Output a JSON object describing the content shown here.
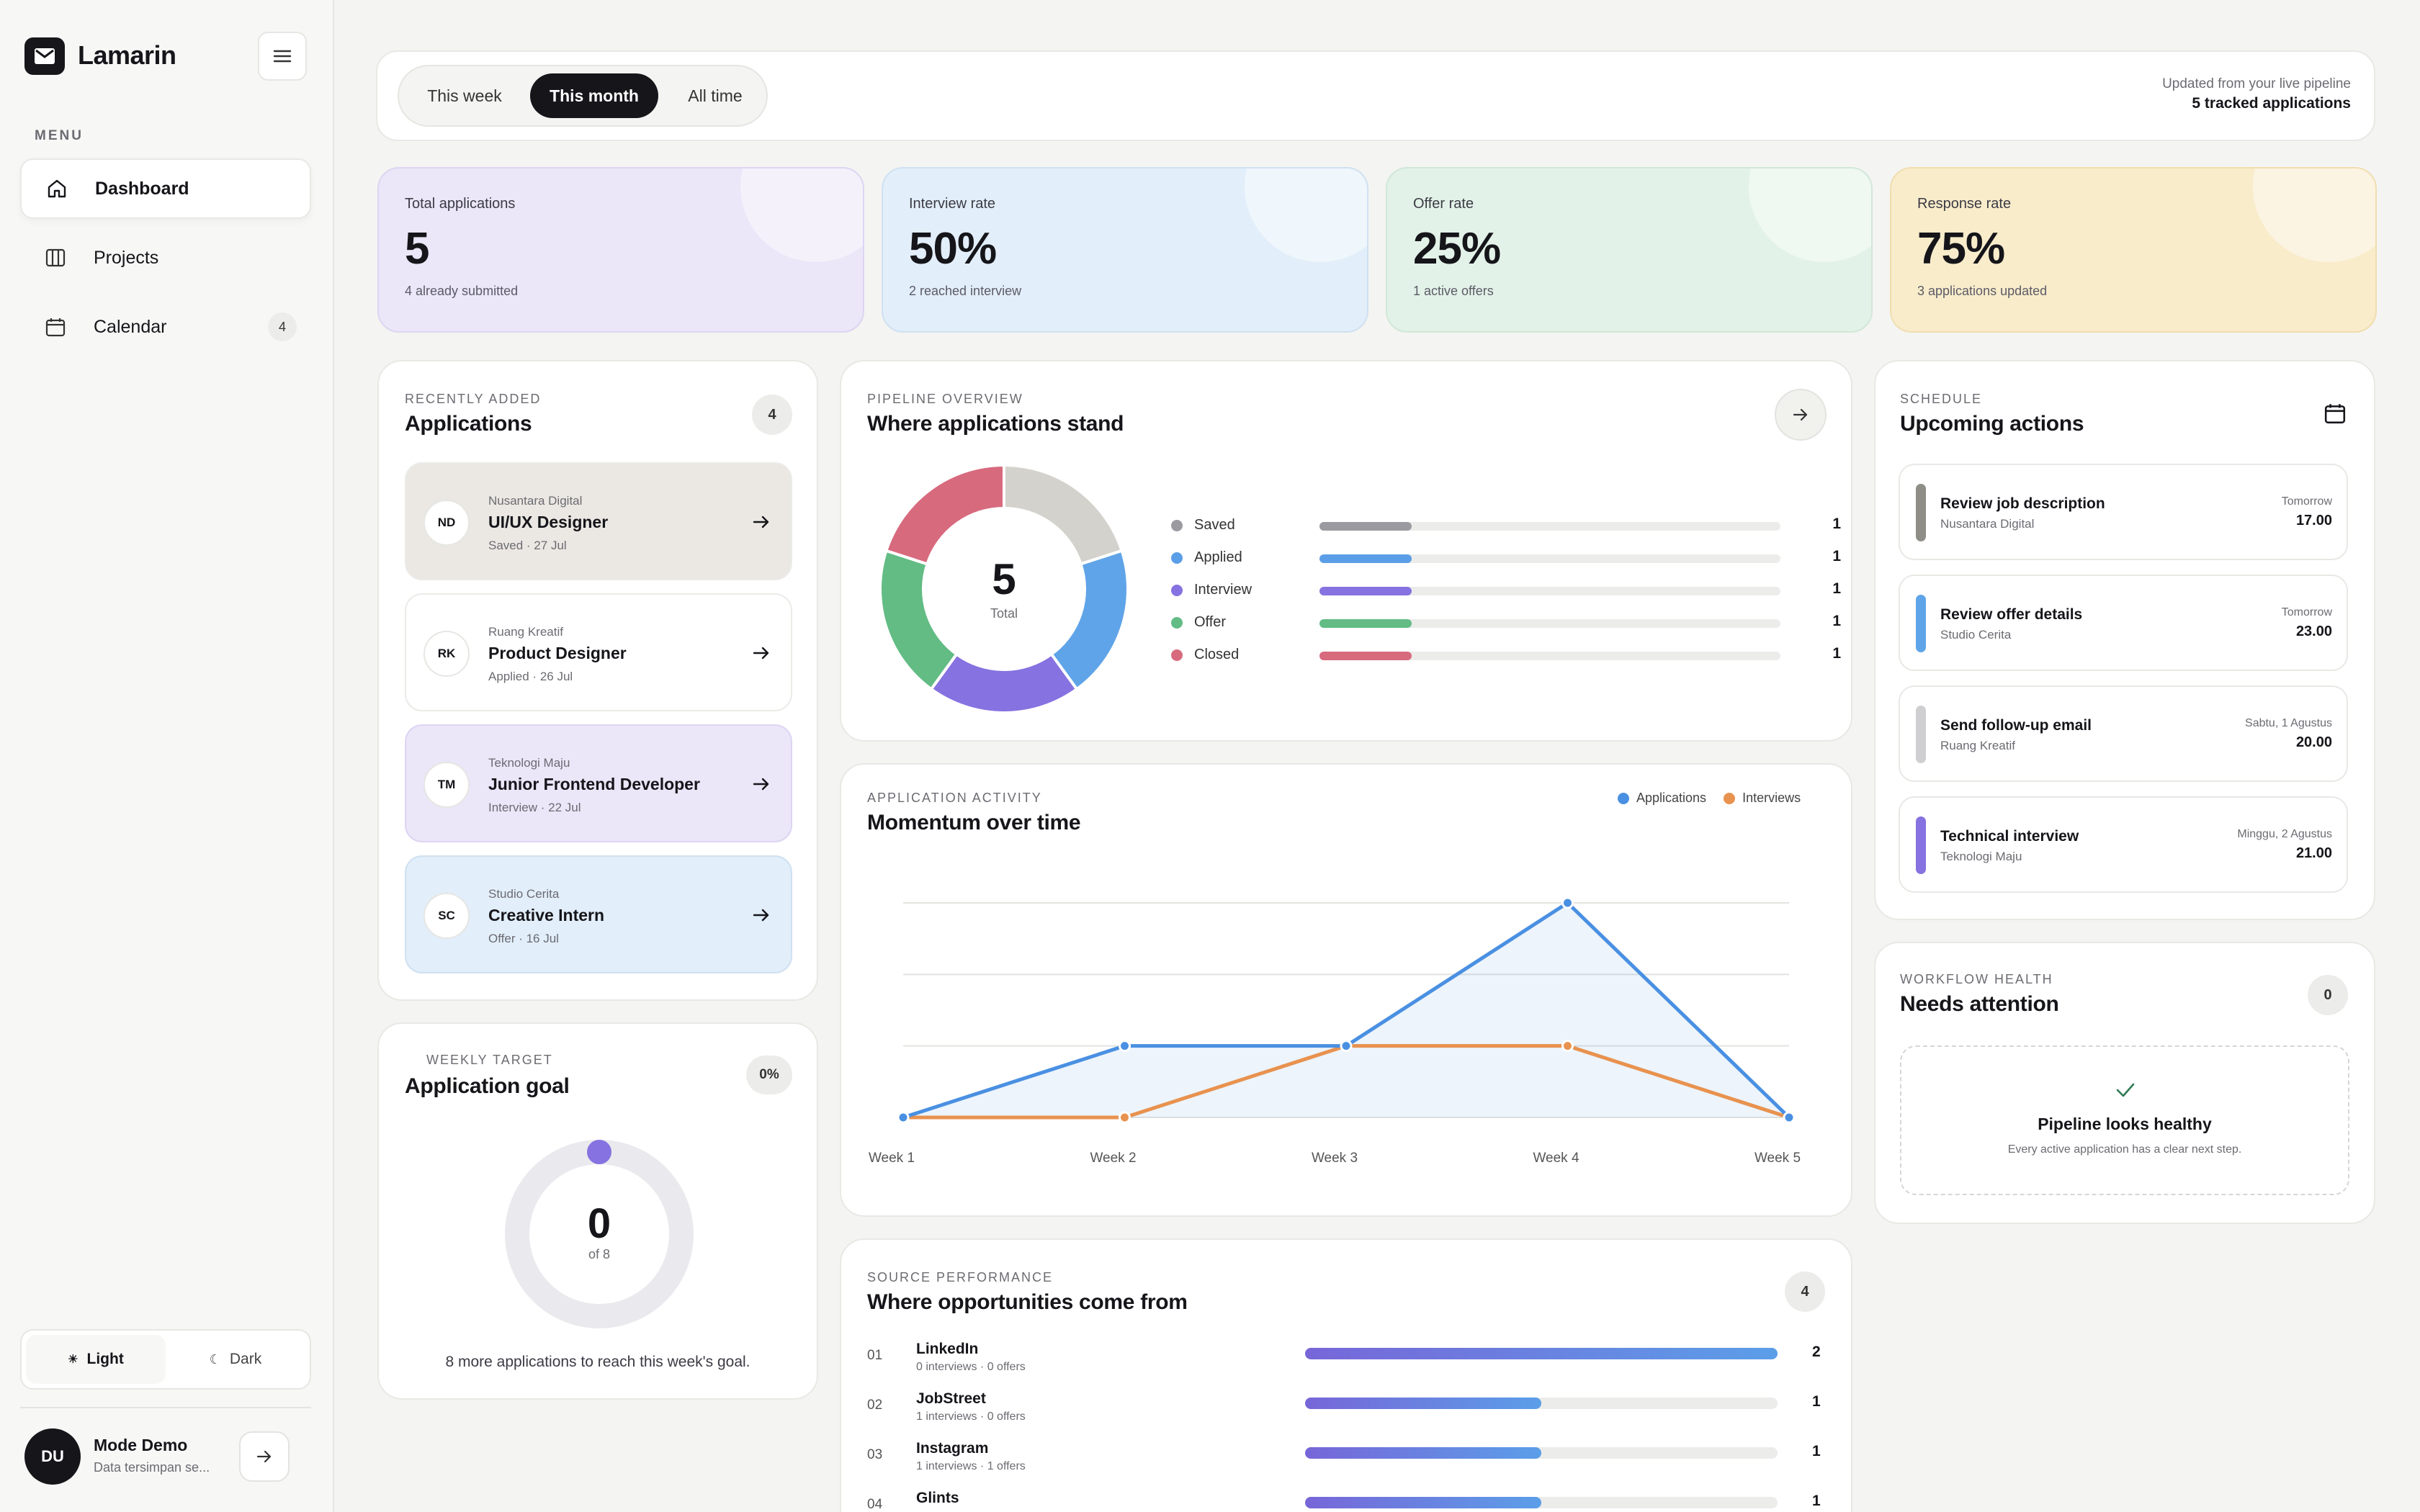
{
  "app": {
    "name": "Lamarin"
  },
  "sidebar": {
    "menu_label": "MENU",
    "items": [
      {
        "label": "Dashboard",
        "icon": "home-icon",
        "active": true
      },
      {
        "label": "Projects",
        "icon": "columns-icon"
      },
      {
        "label": "Calendar",
        "icon": "calendar-icon",
        "badge": "4"
      }
    ],
    "theme": {
      "light": "Light",
      "dark": "Dark",
      "selected": "Light"
    },
    "user": {
      "initials": "DU",
      "name": "Mode Demo",
      "subtitle": "Data tersimpan se..."
    }
  },
  "toolbar": {
    "periods": [
      "This week",
      "This month",
      "All time"
    ],
    "selected_period": "This month",
    "updated_note": "Updated from your live pipeline",
    "tracked": "5 tracked applications"
  },
  "stats": [
    {
      "label": "Total applications",
      "value": "5",
      "sub": "4 already submitted",
      "color": "#ebe6f8"
    },
    {
      "label": "Interview rate",
      "value": "50%",
      "sub": "2 reached interview",
      "color": "#e2eef9"
    },
    {
      "label": "Offer rate",
      "value": "25%",
      "sub": "1 active offers",
      "color": "#e3f2e8"
    },
    {
      "label": "Response rate",
      "value": "75%",
      "sub": "3 applications updated",
      "color": "#f9eccb"
    }
  ],
  "recent": {
    "eyebrow": "RECENTLY ADDED",
    "title": "Applications",
    "count": "4",
    "items": [
      {
        "initials": "ND",
        "company": "Nusantara Digital",
        "role": "UI/UX Designer",
        "meta": "Saved · 27 Jul",
        "color": "#ebe8e3"
      },
      {
        "initials": "RK",
        "company": "Ruang Kreatif",
        "role": "Product Designer",
        "meta": "Applied · 26 Jul",
        "color": "#ffffff"
      },
      {
        "initials": "TM",
        "company": "Teknologi Maju",
        "role": "Junior Frontend Developer",
        "meta": "Interview · 22 Jul",
        "color": "#ebe6f8"
      },
      {
        "initials": "SC",
        "company": "Studio Cerita",
        "role": "Creative Intern",
        "meta": "Offer · 16 Jul",
        "color": "#e2eef9"
      }
    ]
  },
  "goal": {
    "eyebrow": "WEEKLY TARGET",
    "title": "Application goal",
    "percent": "0%",
    "value": "0",
    "of": "of 8",
    "progress": 0,
    "note": "8 more applications to reach this week's goal."
  },
  "pipeline": {
    "eyebrow": "PIPELINE OVERVIEW",
    "title": "Where applications stand",
    "total": "5",
    "total_label": "Total",
    "stages": [
      {
        "name": "Saved",
        "count": "1",
        "value": 1,
        "color": "#9a9aa0"
      },
      {
        "name": "Applied",
        "count": "1",
        "value": 1,
        "color": "#5b9ee8"
      },
      {
        "name": "Interview",
        "count": "1",
        "value": 1,
        "color": "#8672e0"
      },
      {
        "name": "Offer",
        "count": "1",
        "value": 1,
        "color": "#62bc84"
      },
      {
        "name": "Closed",
        "count": "1",
        "value": 1,
        "color": "#d86a7e"
      }
    ],
    "donut_colors": [
      "#d4d2cc",
      "#5fa4e8",
      "#8672e0",
      "#62bc84",
      "#d86a7e"
    ]
  },
  "activity": {
    "eyebrow": "APPLICATION ACTIVITY",
    "title": "Momentum over time",
    "legend": [
      {
        "name": "Applications",
        "color": "#4a90e2"
      },
      {
        "name": "Interviews",
        "color": "#e8924f"
      }
    ]
  },
  "chart_data": {
    "type": "line",
    "x": [
      "Week 1",
      "Week 2",
      "Week 3",
      "Week 4",
      "Week 5"
    ],
    "series": [
      {
        "name": "Applications",
        "values": [
          0,
          1,
          1,
          3,
          0
        ],
        "color": "#4a90e2"
      },
      {
        "name": "Interviews",
        "values": [
          0,
          0,
          1,
          1,
          0
        ],
        "color": "#e8924f"
      }
    ],
    "ylim": [
      0,
      3
    ],
    "grid": true,
    "legend_position": "top-right"
  },
  "schedule": {
    "eyebrow": "SCHEDULE",
    "title": "Upcoming actions",
    "items": [
      {
        "title": "Review job description",
        "org": "Nusantara Digital",
        "when": "Tomorrow",
        "time": "17.00",
        "color": "#8e8e86"
      },
      {
        "title": "Review offer details",
        "org": "Studio Cerita",
        "when": "Tomorrow",
        "time": "23.00",
        "color": "#5fa4e8"
      },
      {
        "title": "Send follow-up email",
        "org": "Ruang Kreatif",
        "when": "Sabtu, 1 Agustus",
        "time": "20.00",
        "color": "#cfcfd2"
      },
      {
        "title": "Technical interview",
        "org": "Teknologi Maju",
        "when": "Minggu, 2 Agustus",
        "time": "21.00",
        "color": "#8672e0"
      }
    ]
  },
  "health": {
    "eyebrow": "WORKFLOW HEALTH",
    "title": "Needs attention",
    "count": "0",
    "status": "Pipeline looks healthy",
    "note": "Every active application has a clear next step."
  },
  "sources": {
    "eyebrow": "SOURCE PERFORMANCE",
    "title": "Where opportunities come from",
    "count": "4",
    "items": [
      {
        "rank": "01",
        "name": "LinkedIn",
        "meta": "0 interviews · 0 offers",
        "count": "2",
        "value": 2
      },
      {
        "rank": "02",
        "name": "JobStreet",
        "meta": "1 interviews · 0 offers",
        "count": "1",
        "value": 1
      },
      {
        "rank": "03",
        "name": "Instagram",
        "meta": "1 interviews · 1 offers",
        "count": "1",
        "value": 1
      },
      {
        "rank": "04",
        "name": "Glints",
        "meta": "",
        "count": "1",
        "value": 1
      }
    ]
  }
}
